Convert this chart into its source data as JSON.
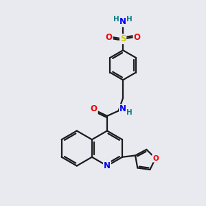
{
  "background_color": "#e8eaf0",
  "bond_color": "#1a1a1a",
  "atom_colors": {
    "N": "#0000ee",
    "O": "#ee0000",
    "S": "#cccc00",
    "H": "#008080",
    "C": "#1a1a1a"
  },
  "bond_width": 1.6,
  "figsize": [
    3.0,
    3.0
  ],
  "dpi": 100
}
